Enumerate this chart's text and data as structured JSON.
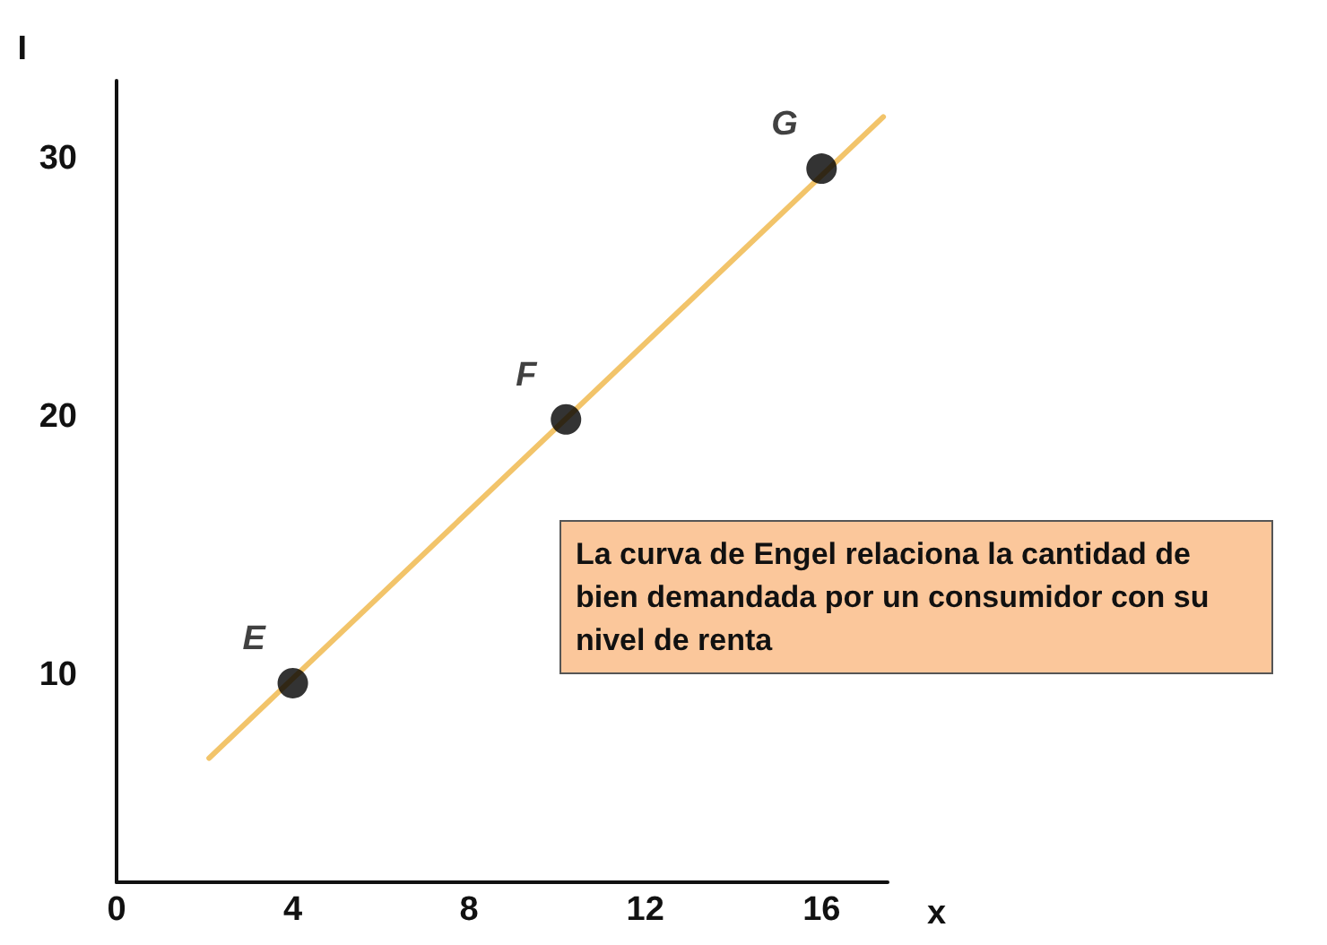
{
  "chart_data": {
    "type": "scatter",
    "xlabel": "x",
    "ylabel": "I",
    "xlim": [
      0,
      17.5
    ],
    "ylim": [
      2,
      33
    ],
    "xticks": [
      0,
      4,
      8,
      12,
      16
    ],
    "yticks": [
      10,
      20,
      30
    ],
    "grid": false,
    "marker": "circle",
    "series": [
      {
        "type": "line",
        "color": "#f2c46a",
        "x": [
          2.1,
          17.4
        ],
        "values": [
          6.8,
          31.6
        ],
        "marker": "none",
        "line_style": "solid"
      },
      {
        "type": "scatter",
        "color": "#000000",
        "x": [
          4,
          10.2,
          16
        ],
        "values": [
          9.7,
          19.9,
          29.6
        ]
      }
    ],
    "annotations": [
      {
        "text": "E",
        "x": 4,
        "y": 9.7
      },
      {
        "text": "F",
        "x": 10.2,
        "y": 19.9
      },
      {
        "text": "G",
        "x": 16,
        "y": 29.6
      },
      "La curva de Engel relaciona la cantidad de bien demandada por un consumidor con su nivel de renta"
    ]
  }
}
